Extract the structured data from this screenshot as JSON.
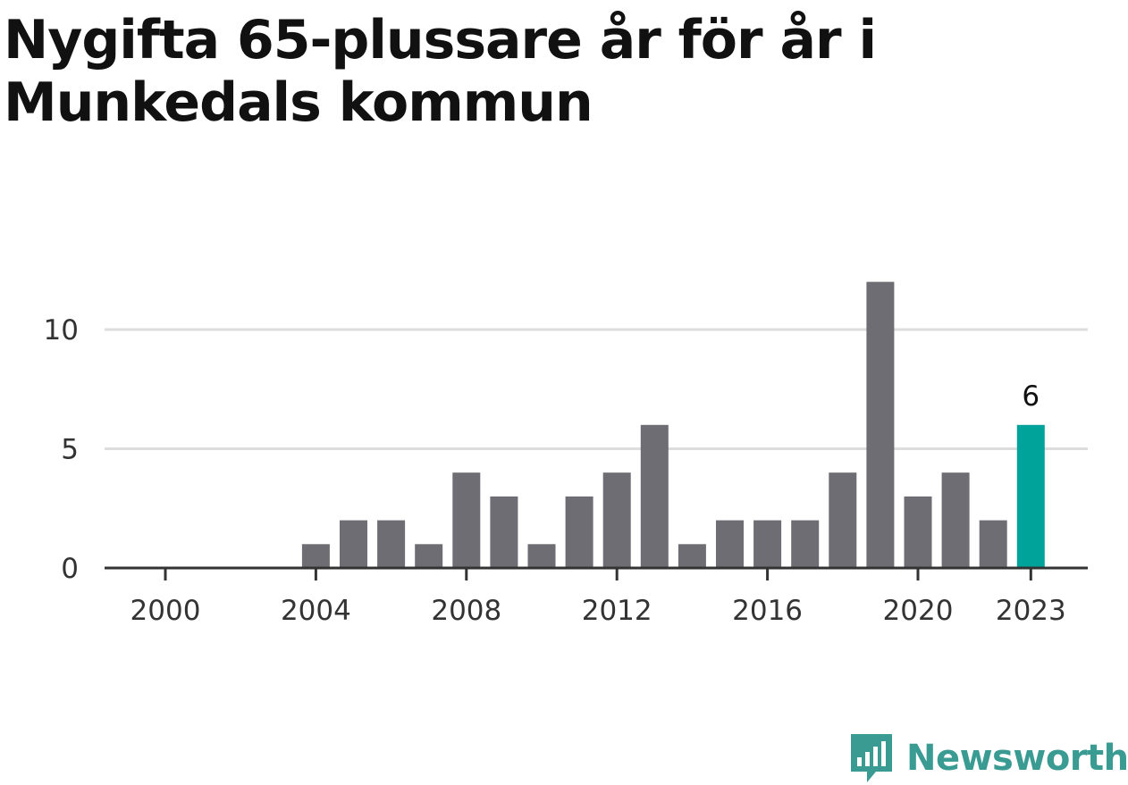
{
  "title": "Nygifta 65-plussare år för år i Munkedals kommun",
  "chart_data": {
    "type": "bar",
    "x": [
      2000,
      2001,
      2002,
      2003,
      2004,
      2005,
      2006,
      2007,
      2008,
      2009,
      2010,
      2011,
      2012,
      2013,
      2014,
      2015,
      2016,
      2017,
      2018,
      2019,
      2020,
      2021,
      2022,
      2023
    ],
    "values": [
      0,
      0,
      0,
      0,
      1,
      2,
      2,
      1,
      4,
      3,
      1,
      3,
      4,
      6,
      1,
      2,
      2,
      2,
      4,
      12,
      3,
      4,
      2,
      6
    ],
    "x_ticks": [
      2000,
      2004,
      2008,
      2012,
      2016,
      2020,
      2023
    ],
    "y_ticks": [
      0,
      5,
      10
    ],
    "ylim": [
      0,
      12
    ],
    "highlight": {
      "x": 2023,
      "label": "6"
    },
    "grid": true,
    "colors": {
      "bar": "#6e6d73",
      "highlight": "#00a39a",
      "grid": "#dddddd",
      "axis": "#333333"
    }
  },
  "brand": {
    "name": "Newsworthy",
    "icon": "newsworthy-logo-icon",
    "color": "#3a9b93"
  }
}
